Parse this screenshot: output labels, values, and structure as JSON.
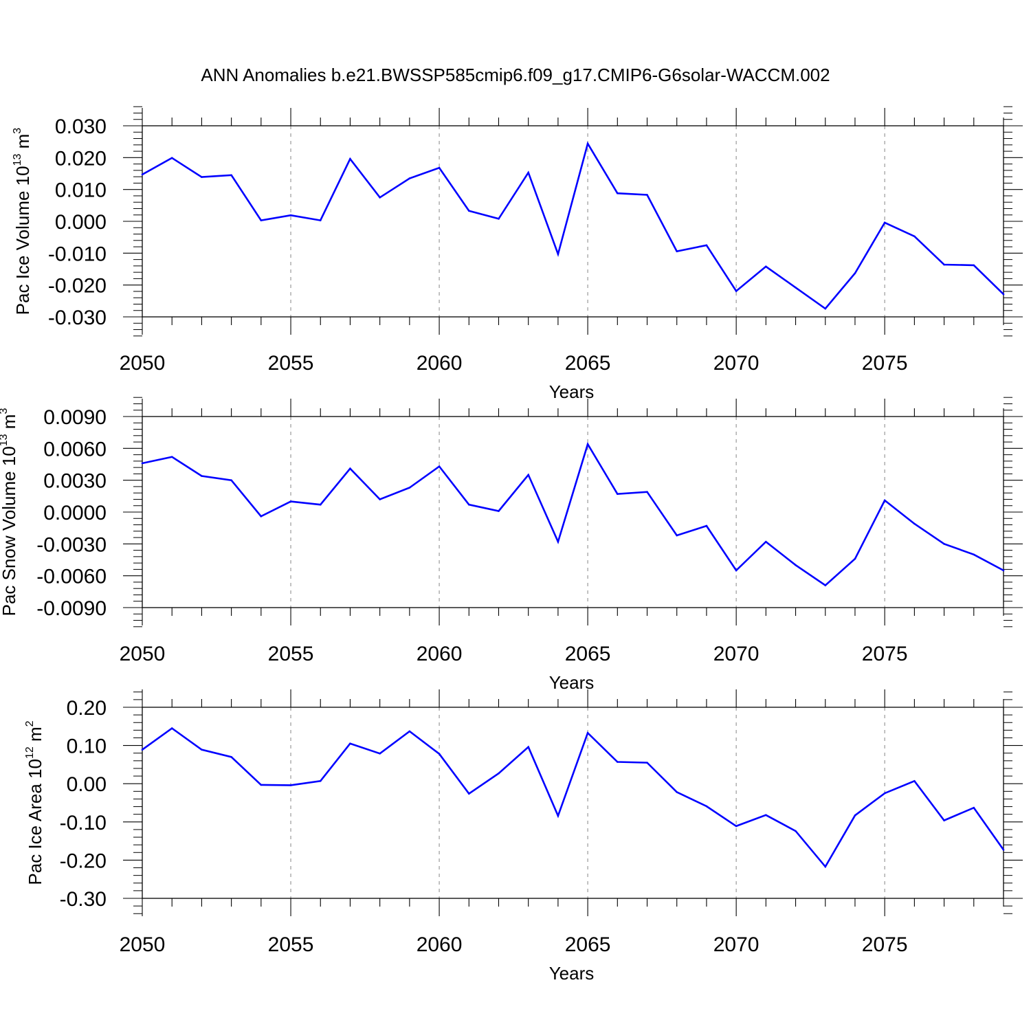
{
  "title": "ANN Anomalies b.e21.BWSSP585cmip6.f09_g17.CMIP6-G6solar-WACCM.002",
  "colors": {
    "line": "#0000ff",
    "grid": "#999999",
    "axis": "#000000"
  },
  "chart_data": [
    {
      "type": "line",
      "ylabel_main": "Pac Ice Volume 10",
      "ylabel_sup": "13",
      "ylabel_unit": " m",
      "ylabel_unit_sup": "3",
      "xlabel": "Years",
      "xlim": [
        2050,
        2079
      ],
      "ylim": [
        -0.03,
        0.03
      ],
      "xticks": [
        2050,
        2055,
        2060,
        2065,
        2070,
        2075
      ],
      "xtick_labels": [
        "2050",
        "2055",
        "2060",
        "2065",
        "2070",
        "2075"
      ],
      "yticks": [
        -0.03,
        -0.02,
        -0.01,
        0.0,
        0.01,
        0.02,
        0.03
      ],
      "ytick_labels": [
        "-0.030",
        "-0.020",
        "-0.010",
        "0.000",
        "0.010",
        "0.020",
        "0.030"
      ],
      "grid": "vertical dashed at major x ticks",
      "x": [
        2050,
        2051,
        2052,
        2053,
        2054,
        2055,
        2056,
        2057,
        2058,
        2059,
        2060,
        2061,
        2062,
        2063,
        2064,
        2065,
        2066,
        2067,
        2068,
        2069,
        2070,
        2071,
        2072,
        2073,
        2074,
        2075,
        2076,
        2077,
        2078,
        2079
      ],
      "values": [
        0.0147,
        0.0199,
        0.0139,
        0.0145,
        0.0003,
        0.0019,
        0.0003,
        0.0196,
        0.0075,
        0.0135,
        0.0168,
        0.0033,
        0.0008,
        0.0153,
        -0.0103,
        0.0244,
        0.0088,
        0.0083,
        -0.0094,
        -0.0075,
        -0.0219,
        -0.0142,
        -0.0208,
        -0.0274,
        -0.0163,
        -0.0004,
        -0.0047,
        -0.0136,
        -0.0138,
        -0.0229
      ]
    },
    {
      "type": "line",
      "ylabel_main": "Pac Snow Volume 10",
      "ylabel_sup": "13",
      "ylabel_unit": " m",
      "ylabel_unit_sup": "3",
      "xlabel": "Years",
      "xlim": [
        2050,
        2079
      ],
      "ylim": [
        -0.009,
        0.009
      ],
      "xticks": [
        2050,
        2055,
        2060,
        2065,
        2070,
        2075
      ],
      "xtick_labels": [
        "2050",
        "2055",
        "2060",
        "2065",
        "2070",
        "2075"
      ],
      "yticks": [
        -0.009,
        -0.006,
        -0.003,
        0.0,
        0.003,
        0.006,
        0.009
      ],
      "ytick_labels": [
        "-0.0090",
        "-0.0060",
        "-0.0030",
        "0.0000",
        "0.0030",
        "0.0060",
        "0.0090"
      ],
      "grid": "vertical dashed at major x ticks",
      "x": [
        2050,
        2051,
        2052,
        2053,
        2054,
        2055,
        2056,
        2057,
        2058,
        2059,
        2060,
        2061,
        2062,
        2063,
        2064,
        2065,
        2066,
        2067,
        2068,
        2069,
        2070,
        2071,
        2072,
        2073,
        2074,
        2075,
        2076,
        2077,
        2078,
        2079
      ],
      "values": [
        0.0046,
        0.0052,
        0.0034,
        0.003,
        -0.0004,
        0.001,
        0.0007,
        0.0041,
        0.0012,
        0.0023,
        0.0043,
        0.0007,
        0.0001,
        0.0035,
        -0.0028,
        0.0064,
        0.0017,
        0.0019,
        -0.0022,
        -0.0013,
        -0.0055,
        -0.0028,
        -0.005,
        -0.0069,
        -0.0044,
        0.0011,
        -0.0011,
        -0.003,
        -0.004,
        -0.0055
      ]
    },
    {
      "type": "line",
      "ylabel_main": "Pac Ice Area 10",
      "ylabel_sup": "12",
      "ylabel_unit": " m",
      "ylabel_unit_sup": "2",
      "xlabel": "Years",
      "xlim": [
        2050,
        2079
      ],
      "ylim": [
        -0.3,
        0.2
      ],
      "xticks": [
        2050,
        2055,
        2060,
        2065,
        2070,
        2075
      ],
      "xtick_labels": [
        "2050",
        "2055",
        "2060",
        "2065",
        "2070",
        "2075"
      ],
      "yticks": [
        -0.3,
        -0.2,
        -0.1,
        0.0,
        0.1,
        0.2
      ],
      "ytick_labels": [
        "-0.30",
        "-0.20",
        "-0.10",
        "0.00",
        "0.10",
        "0.20"
      ],
      "grid": "vertical dashed at major x ticks",
      "x": [
        2050,
        2051,
        2052,
        2053,
        2054,
        2055,
        2056,
        2057,
        2058,
        2059,
        2060,
        2061,
        2062,
        2063,
        2064,
        2065,
        2066,
        2067,
        2068,
        2069,
        2070,
        2071,
        2072,
        2073,
        2074,
        2075,
        2076,
        2077,
        2078,
        2079
      ],
      "values": [
        0.089,
        0.145,
        0.089,
        0.07,
        -0.003,
        -0.004,
        0.007,
        0.105,
        0.079,
        0.137,
        0.078,
        -0.026,
        0.027,
        0.096,
        -0.084,
        0.133,
        0.057,
        0.055,
        -0.022,
        -0.059,
        -0.111,
        -0.082,
        -0.124,
        -0.217,
        -0.083,
        -0.025,
        0.007,
        -0.096,
        -0.063,
        -0.173
      ]
    }
  ]
}
